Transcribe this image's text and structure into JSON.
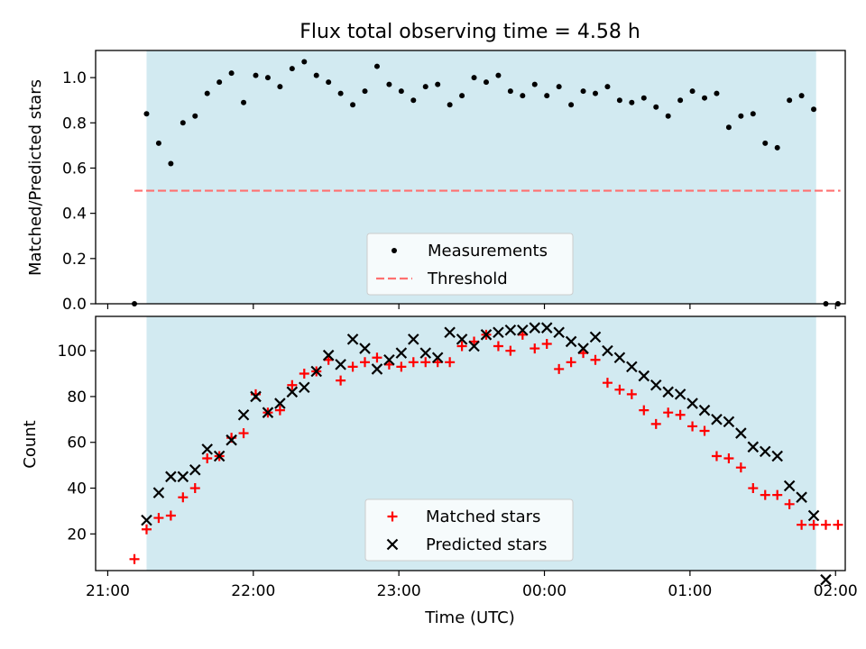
{
  "title": "Flux total observing time = 4.58 h",
  "colors": {
    "span": "#add8e6",
    "measurement": "#000000",
    "threshold": "#ff7070",
    "matched": "#ff0000",
    "predicted": "#000000"
  },
  "chart_data": [
    {
      "type": "scatter",
      "ylabel": "Matched/Predicted stars",
      "ylim": [
        0,
        1.12
      ],
      "y_ticks": [
        "0.0",
        "0.2",
        "0.4",
        "0.6",
        "0.8",
        "1.0"
      ],
      "y_tick_values": [
        0,
        0.2,
        0.4,
        0.6,
        0.8,
        1.0
      ],
      "shaded_span": {
        "x_start": "21:16",
        "x_end": "01:52"
      },
      "threshold": {
        "value": 0.5,
        "x_start": "21:11",
        "x_end": "02:02"
      },
      "legend": {
        "placement": "lower center",
        "entries": [
          "Measurements",
          "Threshold"
        ]
      },
      "series": [
        {
          "name": "Measurements",
          "x": [
            "21:11",
            "21:16",
            "21:21",
            "21:26",
            "21:31",
            "21:36",
            "21:41",
            "21:46",
            "21:51",
            "21:56",
            "22:01",
            "22:06",
            "22:11",
            "22:16",
            "22:21",
            "22:26",
            "22:31",
            "22:36",
            "22:41",
            "22:46",
            "22:51",
            "22:56",
            "23:01",
            "23:06",
            "23:11",
            "23:16",
            "23:21",
            "23:26",
            "23:31",
            "23:36",
            "23:41",
            "23:46",
            "23:51",
            "23:56",
            "00:01",
            "00:06",
            "00:11",
            "00:16",
            "00:21",
            "00:26",
            "00:31",
            "00:36",
            "00:41",
            "00:46",
            "00:51",
            "00:56",
            "01:01",
            "01:06",
            "01:11",
            "01:16",
            "01:21",
            "01:26",
            "01:31",
            "01:36",
            "01:41",
            "01:46",
            "01:51",
            "01:56",
            "02:01"
          ],
          "y": [
            0.0,
            0.84,
            0.71,
            0.62,
            0.8,
            0.83,
            0.93,
            0.98,
            1.02,
            0.89,
            1.01,
            1.0,
            0.96,
            1.04,
            1.07,
            1.01,
            0.98,
            0.93,
            0.88,
            0.94,
            1.05,
            0.97,
            0.94,
            0.9,
            0.96,
            0.97,
            0.88,
            0.92,
            1.0,
            0.98,
            1.01,
            0.94,
            0.92,
            0.97,
            0.92,
            0.96,
            0.88,
            0.94,
            0.93,
            0.96,
            0.9,
            0.89,
            0.91,
            0.87,
            0.83,
            0.9,
            0.94,
            0.91,
            0.93,
            0.78,
            0.83,
            0.84,
            0.71,
            0.69,
            0.9,
            0.92,
            0.86,
            0.0,
            0.0
          ]
        }
      ]
    },
    {
      "type": "scatter",
      "ylabel": "Count",
      "xlabel": "Time (UTC)",
      "ylim": [
        4,
        115
      ],
      "y_ticks": [
        "20",
        "40",
        "60",
        "80",
        "100"
      ],
      "y_tick_values": [
        20,
        40,
        60,
        80,
        100
      ],
      "x_ticks": [
        "21:00",
        "22:00",
        "23:00",
        "00:00",
        "01:00",
        "02:00"
      ],
      "x_tick_values": [
        "21:00",
        "22:00",
        "23:00",
        "00:00",
        "01:00",
        "02:00"
      ],
      "shaded_span": {
        "x_start": "21:16",
        "x_end": "01:52"
      },
      "legend": {
        "placement": "lower center",
        "entries": [
          "Matched stars",
          "Predicted stars"
        ]
      },
      "series": [
        {
          "name": "Matched stars",
          "marker": "plus",
          "x": [
            "21:11",
            "21:16",
            "21:21",
            "21:26",
            "21:31",
            "21:36",
            "21:41",
            "21:46",
            "21:51",
            "21:56",
            "22:01",
            "22:06",
            "22:11",
            "22:16",
            "22:21",
            "22:26",
            "22:31",
            "22:36",
            "22:41",
            "22:46",
            "22:51",
            "22:56",
            "23:01",
            "23:06",
            "23:11",
            "23:16",
            "23:21",
            "23:26",
            "23:31",
            "23:36",
            "23:41",
            "23:46",
            "23:51",
            "23:56",
            "00:01",
            "00:06",
            "00:11",
            "00:16",
            "00:21",
            "00:26",
            "00:31",
            "00:36",
            "00:41",
            "00:46",
            "00:51",
            "00:56",
            "01:01",
            "01:06",
            "01:11",
            "01:16",
            "01:21",
            "01:26",
            "01:31",
            "01:36",
            "01:41",
            "01:46",
            "01:51",
            "01:56",
            "02:01"
          ],
          "y": [
            9,
            22,
            27,
            28,
            36,
            40,
            53,
            54,
            62,
            64,
            81,
            73,
            74,
            85,
            90,
            91,
            96,
            87,
            93,
            95,
            97,
            94,
            93,
            95,
            95,
            95,
            95,
            102,
            104,
            107,
            102,
            100,
            107,
            101,
            103,
            92,
            95,
            99,
            96,
            86,
            83,
            81,
            74,
            68,
            73,
            72,
            67,
            65,
            54,
            53,
            49,
            40,
            37,
            37,
            33,
            24,
            24,
            24,
            24
          ]
        },
        {
          "name": "Predicted stars",
          "marker": "x",
          "x": [
            "21:16",
            "21:21",
            "21:26",
            "21:31",
            "21:36",
            "21:41",
            "21:46",
            "21:51",
            "21:56",
            "22:01",
            "22:06",
            "22:11",
            "22:16",
            "22:21",
            "22:26",
            "22:31",
            "22:36",
            "22:41",
            "22:46",
            "22:51",
            "22:56",
            "23:01",
            "23:06",
            "23:11",
            "23:16",
            "23:21",
            "23:26",
            "23:31",
            "23:36",
            "23:41",
            "23:46",
            "23:51",
            "23:56",
            "00:01",
            "00:06",
            "00:11",
            "00:16",
            "00:21",
            "00:26",
            "00:31",
            "00:36",
            "00:41",
            "00:46",
            "00:51",
            "00:56",
            "01:01",
            "01:06",
            "01:11",
            "01:16",
            "01:21",
            "01:26",
            "01:31",
            "01:36",
            "01:41",
            "01:46",
            "01:51",
            "01:56"
          ],
          "y": [
            26,
            38,
            45,
            45,
            48,
            57,
            54,
            61,
            72,
            80,
            73,
            77,
            82,
            84,
            91,
            98,
            94,
            105,
            101,
            92,
            96,
            99,
            105,
            99,
            97,
            108,
            105,
            102,
            107,
            108,
            109,
            109,
            110,
            110,
            108,
            104,
            101,
            106,
            100,
            97,
            93,
            89,
            85,
            82,
            81,
            77,
            74,
            70,
            69,
            64,
            58,
            56,
            54,
            41,
            36,
            28,
            0
          ]
        }
      ]
    }
  ]
}
